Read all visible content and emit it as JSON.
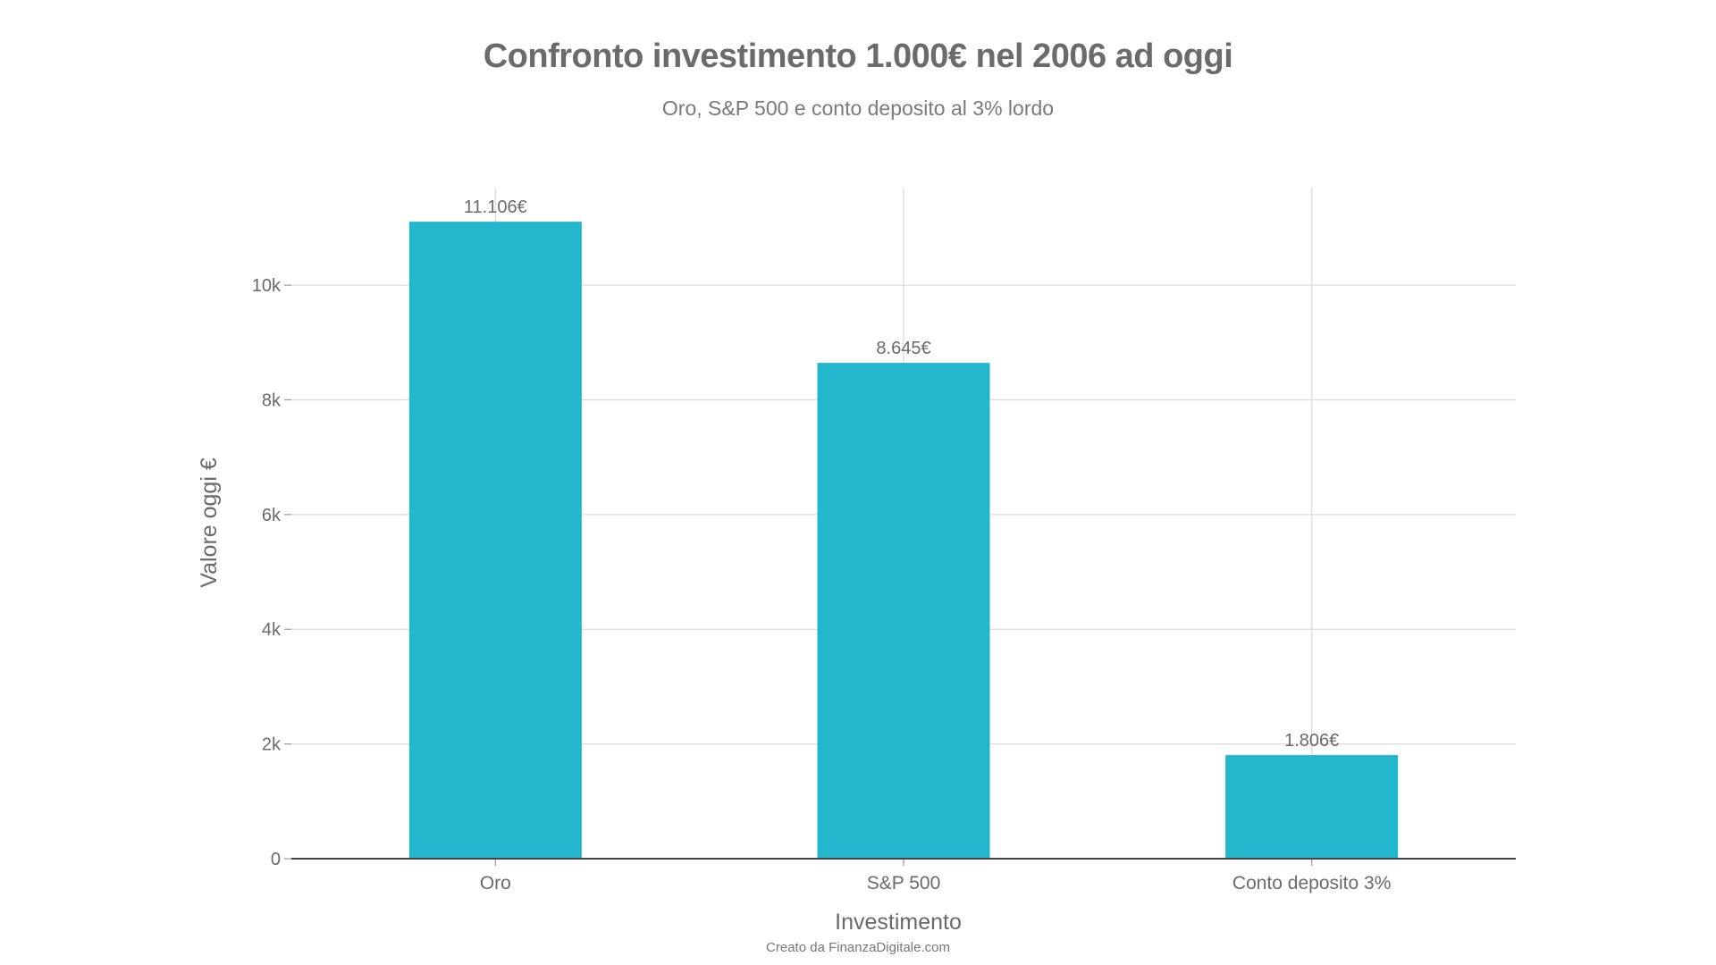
{
  "chart_data": {
    "type": "bar",
    "title": "Confronto investimento 1.000€ nel 2006 ad oggi",
    "subtitle": "Oro, S&P 500 e conto deposito al 3% lordo",
    "xlabel": "Investimento",
    "ylabel": "Valore oggi €",
    "categories": [
      "Oro",
      "S&P 500",
      "Conto deposito 3%"
    ],
    "values": [
      11106,
      8645,
      1806
    ],
    "data_labels": [
      "11.106€",
      "8.645€",
      "1.806€"
    ],
    "ylim": [
      0,
      11700
    ],
    "yticks": [
      0,
      2000,
      4000,
      6000,
      8000,
      10000
    ],
    "ytick_labels": [
      "0",
      "2k",
      "4k",
      "6k",
      "8k",
      "10k"
    ],
    "grid": true,
    "legend": "none",
    "bar_color": "#22b7cc",
    "grid_color": "#dcdcdc",
    "axis_color": "#444444"
  },
  "footer": {
    "credit": "Creato da FinanzaDigitale.com"
  }
}
